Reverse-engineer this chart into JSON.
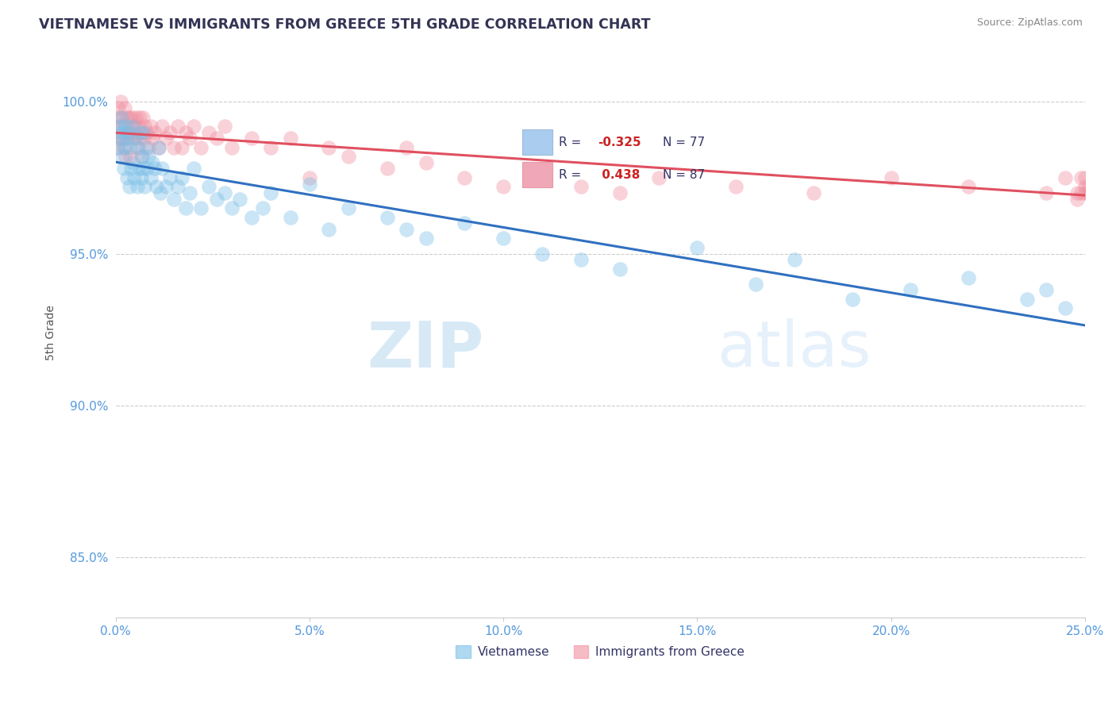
{
  "title": "VIETNAMESE VS IMMIGRANTS FROM GREECE 5TH GRADE CORRELATION CHART",
  "source": "Source: ZipAtlas.com",
  "ylabel": "5th Grade",
  "xlim": [
    0.0,
    25.0
  ],
  "ylim": [
    83.0,
    101.8
  ],
  "xticks": [
    0.0,
    5.0,
    10.0,
    15.0,
    20.0,
    25.0
  ],
  "yticks": [
    85.0,
    90.0,
    95.0,
    100.0
  ],
  "ytick_labels": [
    "85.0%",
    "90.0%",
    "95.0%",
    "100.0%"
  ],
  "xtick_labels": [
    "0.0%",
    "5.0%",
    "10.0%",
    "15.0%",
    "20.0%",
    "25.0%"
  ],
  "series1_label": "Vietnamese",
  "series2_label": "Immigrants from Greece",
  "series1_color": "#7bbfe8",
  "series2_color": "#f090a0",
  "series1_line_color": "#3070c0",
  "series2_line_color": "#e05060",
  "watermark_zip": "ZIP",
  "watermark_atlas": "atlas",
  "R1": -0.325,
  "N1": 77,
  "R2": 0.438,
  "N2": 87,
  "viet_x": [
    0.05,
    0.08,
    0.1,
    0.12,
    0.14,
    0.16,
    0.18,
    0.2,
    0.22,
    0.25,
    0.28,
    0.3,
    0.32,
    0.35,
    0.38,
    0.4,
    0.42,
    0.45,
    0.48,
    0.5,
    0.55,
    0.58,
    0.6,
    0.62,
    0.65,
    0.68,
    0.7,
    0.72,
    0.75,
    0.78,
    0.8,
    0.85,
    0.9,
    0.95,
    1.0,
    1.05,
    1.1,
    1.15,
    1.2,
    1.3,
    1.4,
    1.5,
    1.6,
    1.7,
    1.8,
    1.9,
    2.0,
    2.2,
    2.4,
    2.6,
    2.8,
    3.0,
    3.2,
    3.5,
    3.8,
    4.0,
    4.5,
    5.0,
    5.5,
    6.0,
    7.0,
    7.5,
    8.0,
    9.0,
    10.0,
    11.0,
    12.0,
    13.0,
    15.0,
    16.5,
    17.5,
    19.0,
    20.5,
    22.0,
    23.5,
    24.0,
    24.5
  ],
  "viet_y": [
    98.5,
    99.2,
    99.0,
    98.8,
    99.5,
    98.2,
    99.0,
    97.8,
    98.5,
    99.2,
    97.5,
    98.8,
    99.0,
    97.2,
    98.5,
    97.8,
    99.2,
    98.0,
    97.5,
    98.8,
    97.2,
    98.5,
    97.8,
    99.0,
    97.5,
    98.2,
    97.8,
    99.0,
    97.2,
    98.5,
    97.8,
    98.2,
    97.5,
    98.0,
    97.8,
    97.2,
    98.5,
    97.0,
    97.8,
    97.2,
    97.5,
    96.8,
    97.2,
    97.5,
    96.5,
    97.0,
    97.8,
    96.5,
    97.2,
    96.8,
    97.0,
    96.5,
    96.8,
    96.2,
    96.5,
    97.0,
    96.2,
    97.3,
    95.8,
    96.5,
    96.2,
    95.8,
    95.5,
    96.0,
    95.5,
    95.0,
    94.8,
    94.5,
    95.2,
    94.0,
    94.8,
    93.5,
    93.8,
    94.2,
    93.5,
    93.8,
    93.2
  ],
  "greece_x": [
    0.03,
    0.05,
    0.07,
    0.08,
    0.1,
    0.12,
    0.14,
    0.16,
    0.18,
    0.2,
    0.22,
    0.25,
    0.28,
    0.3,
    0.32,
    0.35,
    0.38,
    0.4,
    0.42,
    0.45,
    0.48,
    0.5,
    0.52,
    0.55,
    0.58,
    0.6,
    0.62,
    0.65,
    0.68,
    0.7,
    0.72,
    0.75,
    0.8,
    0.85,
    0.9,
    0.95,
    1.0,
    1.1,
    1.2,
    1.3,
    1.4,
    1.5,
    1.6,
    1.7,
    1.8,
    1.9,
    2.0,
    2.2,
    2.4,
    2.6,
    2.8,
    3.0,
    3.5,
    4.0,
    4.5,
    5.0,
    5.5,
    6.0,
    7.0,
    7.5,
    8.0,
    9.0,
    10.0,
    11.0,
    12.0,
    13.0,
    14.0,
    16.0,
    18.0,
    20.0,
    22.0,
    24.0,
    24.5,
    25.0,
    25.2,
    24.8,
    25.1,
    25.3,
    25.0,
    24.9,
    25.2,
    25.1,
    25.0,
    24.8,
    25.2,
    24.9,
    25.1
  ],
  "greece_y": [
    99.5,
    98.5,
    99.8,
    98.8,
    99.2,
    100.0,
    99.5,
    98.8,
    99.2,
    98.5,
    99.8,
    98.2,
    99.5,
    98.8,
    99.0,
    99.5,
    98.2,
    99.0,
    99.5,
    98.8,
    99.2,
    99.0,
    99.5,
    98.5,
    99.2,
    98.8,
    99.5,
    98.2,
    99.0,
    99.5,
    98.8,
    99.2,
    99.0,
    98.5,
    99.2,
    98.8,
    99.0,
    98.5,
    99.2,
    98.8,
    99.0,
    98.5,
    99.2,
    98.5,
    99.0,
    98.8,
    99.2,
    98.5,
    99.0,
    98.8,
    99.2,
    98.5,
    98.8,
    98.5,
    98.8,
    97.5,
    98.5,
    98.2,
    97.8,
    98.5,
    98.0,
    97.5,
    97.2,
    97.5,
    97.2,
    97.0,
    97.5,
    97.2,
    97.0,
    97.5,
    97.2,
    97.0,
    97.5,
    97.0,
    97.2,
    96.8,
    97.0,
    96.8,
    97.2,
    97.0,
    96.8,
    97.2,
    97.5,
    97.0,
    97.2,
    97.5,
    97.0
  ]
}
